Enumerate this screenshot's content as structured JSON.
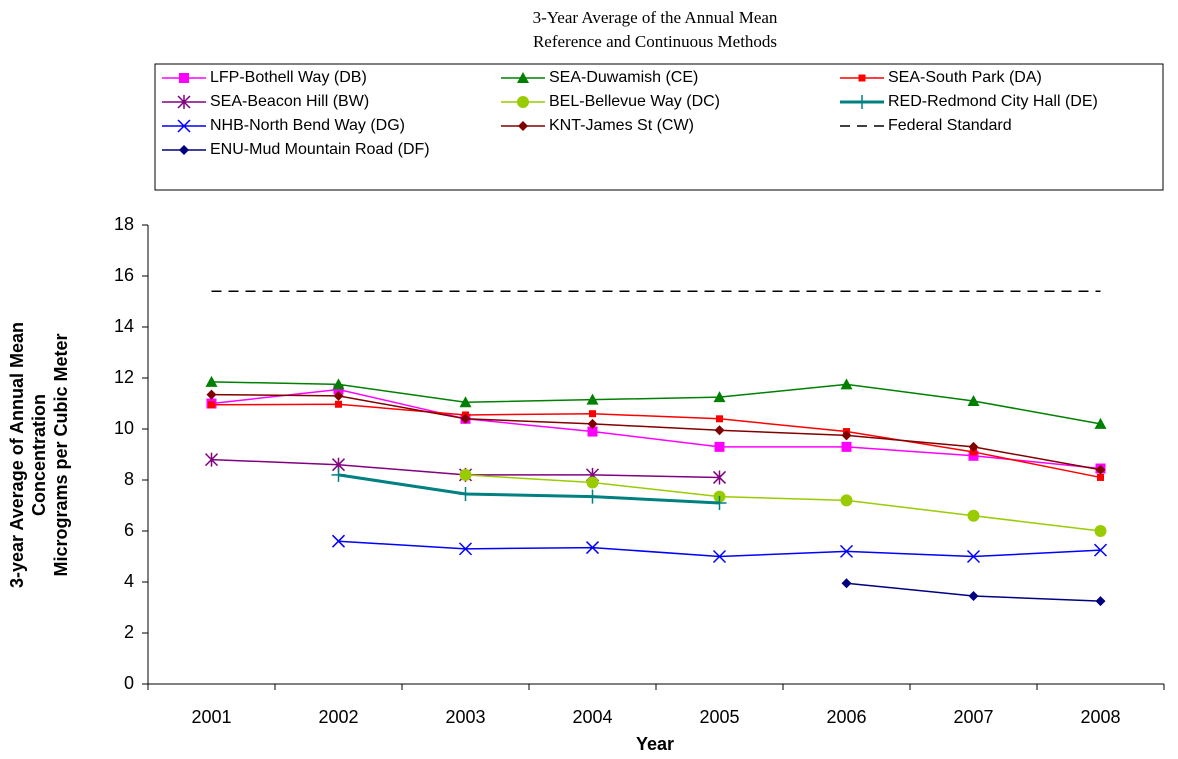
{
  "chart_data": {
    "type": "line",
    "title": "3-Year Average of the Annual Mean",
    "subtitle": "Reference and Continuous Methods",
    "xlabel": "Year",
    "ylabel": [
      "3-year Average of Annual Mean",
      "Concentration",
      "Micrograms per Cubic Meter"
    ],
    "categories": [
      "2001",
      "2002",
      "2003",
      "2004",
      "2005",
      "2006",
      "2007",
      "2008"
    ],
    "ylim": [
      0,
      18
    ],
    "yticks": [
      0,
      2,
      4,
      6,
      8,
      10,
      12,
      14,
      16,
      18
    ],
    "grid": false,
    "legend": "top",
    "series": [
      {
        "name": "LFP-Bothell Way (DB)",
        "color": "#ff00ff",
        "marker": "square",
        "values": [
          11.0,
          11.55,
          10.4,
          9.9,
          9.3,
          9.3,
          8.95,
          8.45
        ]
      },
      {
        "name": "SEA-Duwamish (CE)",
        "color": "#008000",
        "marker": "triangle",
        "values": [
          11.85,
          11.75,
          11.05,
          11.15,
          11.25,
          11.75,
          11.1,
          10.2
        ]
      },
      {
        "name": "SEA-South Park (DA)",
        "color": "#ff0000",
        "marker": "small-square",
        "values": [
          10.95,
          10.97,
          10.55,
          10.6,
          10.4,
          9.9,
          9.1,
          8.1
        ]
      },
      {
        "name": "SEA-Beacon Hill (BW)",
        "color": "#800080",
        "marker": "asterisk",
        "values": [
          8.8,
          8.6,
          8.2,
          8.2,
          8.1,
          null,
          null,
          null
        ]
      },
      {
        "name": "BEL-Bellevue Way (DC)",
        "color": "#99cc00",
        "marker": "circle",
        "values": [
          null,
          null,
          8.2,
          7.9,
          7.35,
          7.2,
          6.6,
          6.0
        ]
      },
      {
        "name": "RED-Redmond City Hall (DE)",
        "color": "#008080",
        "marker": "plus",
        "width": 3,
        "values": [
          null,
          8.2,
          7.45,
          7.35,
          7.1,
          null,
          null,
          null
        ]
      },
      {
        "name": "NHB-North Bend Way (DG)",
        "color": "#0000ff",
        "marker": "x",
        "values": [
          null,
          5.6,
          5.3,
          5.35,
          5.0,
          5.2,
          5.0,
          5.25
        ]
      },
      {
        "name": "KNT-James St (CW)",
        "color": "#800000",
        "marker": "diamond",
        "values": [
          11.35,
          11.3,
          10.4,
          10.2,
          9.95,
          9.75,
          9.3,
          8.4
        ]
      },
      {
        "name": "Federal Standard",
        "color": "#000000",
        "marker": "none",
        "dash": true,
        "values": [
          15.4,
          15.4,
          15.4,
          15.4,
          15.4,
          15.4,
          15.4,
          15.4
        ]
      },
      {
        "name": "ENU-Mud Mountain Road (DF)",
        "color": "#000080",
        "marker": "diamond",
        "values": [
          null,
          null,
          null,
          null,
          null,
          3.95,
          3.45,
          3.25
        ]
      }
    ]
  }
}
